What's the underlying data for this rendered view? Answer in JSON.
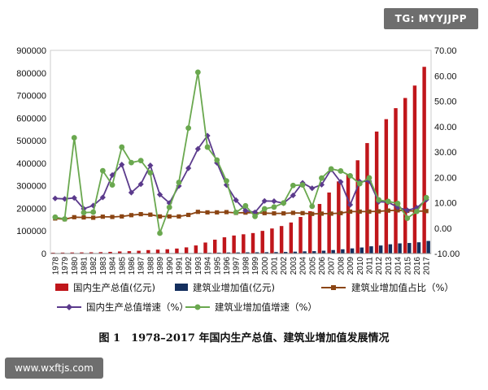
{
  "watermarks": {
    "top": "TG: MYYJJPP",
    "bottom": "www.wxftjs.com"
  },
  "caption": "图 1　1978–2017 年国内生产总值、建筑业增加值发展情况",
  "chart_data": {
    "type": "bar",
    "x": [
      "1978",
      "1979",
      "1980",
      "1981",
      "1982",
      "1983",
      "1984",
      "1985",
      "1986",
      "1987",
      "1988",
      "1989",
      "1990",
      "1991",
      "1992",
      "1993",
      "1994",
      "1995",
      "1996",
      "1997",
      "1998",
      "1999",
      "2000",
      "2001",
      "2002",
      "2003",
      "2004",
      "2005",
      "2006",
      "2007",
      "2008",
      "2009",
      "2010",
      "2011",
      "2012",
      "2013",
      "2014",
      "2015",
      "2016",
      "2017"
    ],
    "left_axis": {
      "min": 0,
      "max": 900000,
      "ticks": [
        "0",
        "100000",
        "200000",
        "300000",
        "400000",
        "500000",
        "600000",
        "700000",
        "800000",
        "900000"
      ]
    },
    "right_axis": {
      "min": -10,
      "max": 70,
      "ticks": [
        "-10.00",
        "0.00",
        "10.00",
        "20.00",
        "30.00",
        "40.00",
        "50.00",
        "60.00",
        "70.00"
      ]
    },
    "colors": {
      "gdp": "#c0161b",
      "construction": "#142f5e",
      "share": "#8b4513",
      "gdp_growth": "#5b3a8c",
      "construction_growth": "#6aa84f"
    },
    "series": [
      {
        "name": "国内生产总值(亿元)",
        "axis": "left",
        "kind": "bar",
        "values": [
          3679,
          4101,
          4588,
          4936,
          5373,
          6021,
          7279,
          9099,
          10376,
          12175,
          15180,
          17180,
          18873,
          22006,
          27195,
          35673,
          48638,
          61340,
          71814,
          79715,
          85196,
          90564,
          100280,
          110863,
          121717,
          137422,
          161840,
          187319,
          219439,
          270232,
          319516,
          349081,
          413030,
          489301,
          540367,
          595244,
          643974,
          689052,
          744127,
          827122
        ]
      },
      {
        "name": "建筑业增加值(亿元)",
        "axis": "left",
        "kind": "bar",
        "values": [
          139,
          144,
          196,
          208,
          221,
          271,
          317,
          418,
          526,
          666,
          811,
          795,
          860,
          1015,
          1415,
          2284,
          3013,
          3820,
          4531,
          4810,
          5232,
          5471,
          5888,
          6375,
          7005,
          8182,
          9573,
          10400,
          12451,
          15348,
          18807,
          22682,
          26661,
          31943,
          35491,
          40897,
          44881,
          46627,
          49703,
          55689
        ]
      },
      {
        "name": "建筑业增加值占比（%）",
        "axis": "right",
        "kind": "line",
        "values": [
          3.8,
          3.5,
          4.3,
          4.2,
          4.1,
          4.5,
          4.4,
          4.6,
          5.1,
          5.5,
          5.3,
          4.6,
          4.6,
          4.6,
          5.2,
          6.4,
          6.2,
          6.2,
          6.3,
          6.0,
          6.1,
          6.0,
          5.9,
          5.8,
          5.8,
          6.0,
          5.9,
          5.6,
          5.7,
          5.7,
          5.9,
          6.5,
          6.5,
          6.5,
          6.6,
          6.9,
          7.0,
          6.8,
          6.7,
          6.7
        ]
      },
      {
        "name": "国内生产总值增速（%）",
        "axis": "right",
        "kind": "line",
        "values": [
          11.7,
          11.5,
          11.9,
          7.6,
          8.9,
          12.1,
          20.9,
          25.0,
          14.0,
          17.3,
          24.7,
          13.2,
          9.9,
          16.6,
          23.6,
          31.2,
          36.4,
          25.7,
          17.0,
          11.0,
          6.9,
          6.2,
          10.7,
          10.6,
          9.8,
          12.9,
          17.8,
          15.7,
          17.1,
          23.1,
          18.2,
          9.2,
          18.3,
          18.5,
          10.4,
          10.2,
          8.2,
          7.0,
          8.0,
          11.2
        ]
      },
      {
        "name": "建筑业增加值增速（%）",
        "axis": "right",
        "kind": "line",
        "values": [
          4.3,
          3.6,
          35.6,
          6.1,
          6.3,
          22.6,
          17.0,
          31.9,
          25.8,
          26.6,
          21.8,
          -2.0,
          8.2,
          18.0,
          39.4,
          61.4,
          31.9,
          26.8,
          18.6,
          6.2,
          8.8,
          4.6,
          7.6,
          8.3,
          9.9,
          16.8,
          17.0,
          8.6,
          19.7,
          23.3,
          22.5,
          20.6,
          17.5,
          19.8,
          11.1,
          10.5,
          9.7,
          3.9,
          6.6,
          12.0
        ]
      }
    ],
    "legend": {
      "placement": "bottom"
    },
    "grid": false,
    "title": "",
    "xlabel": "",
    "ylabel": ""
  }
}
